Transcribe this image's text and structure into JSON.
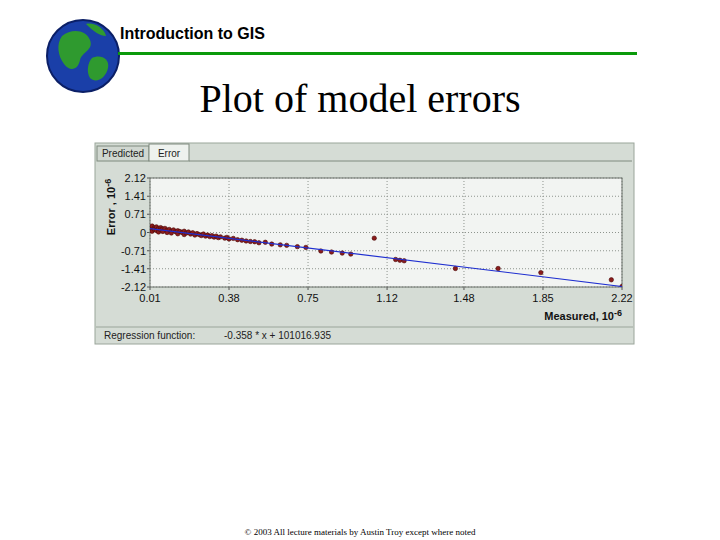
{
  "header": {
    "text": "Introduction to GIS"
  },
  "title": "Plot of model errors",
  "panel": {
    "tabs": [
      "Predicted",
      "Error"
    ]
  },
  "chart_data": {
    "type": "scatter",
    "ylabel": {
      "text": "Error , 10",
      "sup": "-6"
    },
    "xlabel": {
      "text": "Measured, 10",
      "sup": "-6"
    },
    "xlim": [
      0.01,
      2.22
    ],
    "ylim": [
      -2.12,
      2.12
    ],
    "xticks": [
      0.01,
      0.38,
      0.75,
      1.12,
      1.48,
      1.85,
      2.22
    ],
    "yticks": [
      2.12,
      1.41,
      0.71,
      0,
      -0.71,
      -1.41,
      -2.12
    ],
    "grid": true,
    "annotations": [
      "Regression function:",
      "-0.358 * x + 101016.935"
    ],
    "series": [
      {
        "type": "scatter",
        "color": "#8b1c1c",
        "marker": "circle",
        "x": [
          0.01,
          0.01,
          0.02,
          0.02,
          0.03,
          0.03,
          0.04,
          0.04,
          0.05,
          0.05,
          0.06,
          0.06,
          0.07,
          0.07,
          0.08,
          0.09,
          0.09,
          0.1,
          0.11,
          0.11,
          0.12,
          0.13,
          0.14,
          0.14,
          0.15,
          0.16,
          0.17,
          0.17,
          0.18,
          0.19,
          0.2,
          0.21,
          0.22,
          0.23,
          0.24,
          0.25,
          0.26,
          0.27,
          0.28,
          0.29,
          0.3,
          0.31,
          0.32,
          0.33,
          0.34,
          0.36,
          0.37,
          0.38,
          0.4,
          0.42,
          0.44,
          0.46,
          0.48,
          0.5,
          0.52,
          0.55,
          0.58,
          0.62,
          0.65,
          0.7,
          0.74,
          0.81,
          0.86,
          0.91,
          0.95,
          1.06,
          1.16,
          1.18,
          1.2,
          1.44,
          1.64,
          1.84,
          2.17,
          2.22
        ],
        "values": [
          0.2,
          0.1,
          0.25,
          0.05,
          0.18,
          0.12,
          0.22,
          0.08,
          0.15,
          0.02,
          0.19,
          0.1,
          0.14,
          0.04,
          0.16,
          0.09,
          0.0,
          0.12,
          0.05,
          -0.02,
          0.1,
          0.03,
          0.07,
          -0.05,
          0.04,
          0.0,
          0.05,
          -0.08,
          -0.02,
          0.02,
          -0.06,
          -0.01,
          -0.1,
          -0.04,
          -0.08,
          -0.12,
          -0.06,
          -0.14,
          -0.1,
          -0.16,
          -0.12,
          -0.18,
          -0.14,
          -0.2,
          -0.17,
          -0.22,
          -0.19,
          -0.25,
          -0.23,
          -0.28,
          -0.3,
          -0.33,
          -0.35,
          -0.36,
          -0.4,
          -0.38,
          -0.45,
          -0.48,
          -0.5,
          -0.55,
          -0.58,
          -0.72,
          -0.76,
          -0.8,
          -0.84,
          -0.22,
          -1.05,
          -1.08,
          -1.1,
          -1.4,
          -1.4,
          -1.56,
          -1.84,
          -2.1
        ]
      },
      {
        "type": "line",
        "color": "#1f2fd0",
        "line_style": "solid",
        "x": [
          0.01,
          2.22
        ],
        "values": [
          0.15,
          -2.1
        ]
      }
    ]
  },
  "footer": "© 2003 All lecture materials by Austin Troy except where noted"
}
